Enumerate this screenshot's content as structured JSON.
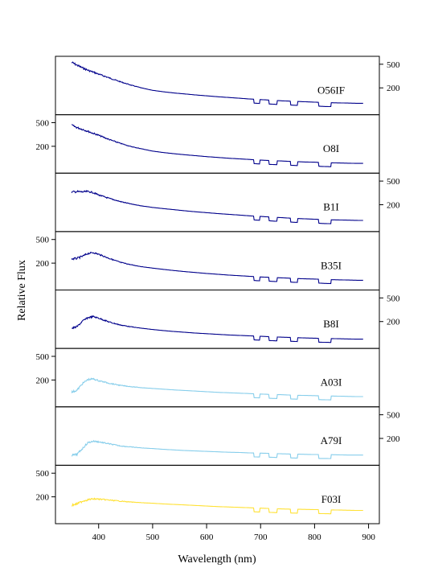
{
  "chart_data": {
    "type": "line",
    "xlabel": "Wavelength (nm)",
    "ylabel": "Relative Flux",
    "xlim": [
      320,
      920
    ],
    "x_ticks": [
      400,
      500,
      600,
      700,
      800,
      900
    ],
    "y_scale": "log",
    "y_ticks": [
      200,
      500
    ],
    "ylim": [
      80,
      600
    ],
    "grid": false,
    "series": [
      {
        "name": "O56IF",
        "color": "#00008b",
        "y_axis_side": "right",
        "x": [
          350,
          360,
          370,
          380,
          390,
          400,
          420,
          440,
          460,
          480,
          500,
          520,
          540,
          560,
          580,
          600,
          620,
          640,
          660,
          680,
          700,
          720,
          740,
          760,
          780,
          800,
          820,
          840,
          860,
          880,
          890
        ],
        "values": [
          560,
          500,
          450,
          410,
          380,
          350,
          300,
          258,
          225,
          200,
          182,
          172,
          164,
          158,
          152,
          147,
          142,
          138,
          134,
          130,
          127,
          124,
          121,
          119,
          117,
          115,
          113,
          112,
          111,
          110,
          110
        ]
      },
      {
        "name": "O8I",
        "color": "#00008b",
        "y_axis_side": "left",
        "x": [
          350,
          360,
          370,
          380,
          390,
          400,
          420,
          440,
          460,
          480,
          500,
          520,
          540,
          560,
          580,
          600,
          620,
          640,
          660,
          680,
          700,
          720,
          740,
          760,
          780,
          800,
          820,
          840,
          860,
          880,
          890
        ],
        "values": [
          470,
          430,
          400,
          370,
          340,
          315,
          265,
          228,
          200,
          182,
          166,
          157,
          150,
          144,
          139,
          134,
          130,
          126,
          123,
          120,
          117,
          115,
          113,
          111,
          109,
          108,
          106,
          105,
          104,
          103,
          103
        ]
      },
      {
        "name": "B1I",
        "color": "#00008b",
        "y_axis_side": "right",
        "x": [
          350,
          360,
          370,
          380,
          390,
          400,
          420,
          440,
          460,
          480,
          500,
          520,
          540,
          560,
          580,
          600,
          620,
          640,
          660,
          680,
          700,
          720,
          740,
          760,
          780,
          800,
          820,
          840,
          860,
          880,
          890
        ],
        "values": [
          340,
          345,
          340,
          345,
          330,
          300,
          260,
          230,
          208,
          192,
          180,
          172,
          165,
          158,
          152,
          147,
          142,
          138,
          134,
          130,
          127,
          124,
          121,
          118,
          116,
          114,
          112,
          111,
          110,
          109,
          109
        ]
      },
      {
        "name": "B35I",
        "color": "#00008b",
        "y_axis_side": "left",
        "x": [
          350,
          360,
          370,
          380,
          390,
          400,
          420,
          440,
          460,
          480,
          500,
          520,
          540,
          560,
          580,
          600,
          620,
          640,
          660,
          680,
          700,
          720,
          740,
          760,
          780,
          800,
          820,
          840,
          860,
          880,
          890
        ],
        "values": [
          245,
          250,
          270,
          300,
          310,
          290,
          245,
          210,
          190,
          175,
          165,
          157,
          150,
          144,
          139,
          134,
          130,
          126,
          123,
          120,
          117,
          115,
          113,
          111,
          109,
          108,
          106,
          105,
          104,
          103,
          103
        ]
      },
      {
        "name": "B8I",
        "color": "#00008b",
        "y_axis_side": "right",
        "x": [
          350,
          360,
          370,
          380,
          390,
          400,
          420,
          440,
          460,
          480,
          500,
          520,
          540,
          560,
          580,
          600,
          620,
          640,
          660,
          680,
          700,
          720,
          740,
          760,
          780,
          800,
          820,
          840,
          860,
          880,
          890
        ],
        "values": [
          160,
          170,
          210,
          240,
          250,
          235,
          200,
          178,
          165,
          155,
          147,
          141,
          136,
          132,
          128,
          125,
          122,
          119,
          117,
          115,
          113,
          111,
          109,
          108,
          106,
          105,
          104,
          103,
          102,
          101,
          101
        ]
      },
      {
        "name": "A03I",
        "color": "#87ceeb",
        "y_axis_side": "left",
        "x": [
          350,
          360,
          370,
          380,
          390,
          400,
          420,
          440,
          460,
          480,
          500,
          520,
          540,
          560,
          580,
          600,
          620,
          640,
          660,
          680,
          700,
          720,
          740,
          760,
          780,
          800,
          820,
          840,
          860,
          880,
          890
        ],
        "values": [
          130,
          140,
          180,
          210,
          215,
          200,
          180,
          165,
          156,
          149,
          144,
          140,
          136,
          133,
          130,
          127,
          124,
          122,
          120,
          118,
          116,
          114,
          113,
          111,
          110,
          109,
          108,
          107,
          106,
          105,
          105
        ]
      },
      {
        "name": "A79I",
        "color": "#87ceeb",
        "y_axis_side": "right",
        "x": [
          350,
          360,
          370,
          380,
          390,
          400,
          420,
          440,
          460,
          480,
          500,
          520,
          540,
          560,
          580,
          600,
          620,
          640,
          660,
          680,
          700,
          720,
          740,
          760,
          780,
          800,
          820,
          840,
          860,
          880,
          890
        ],
        "values": [
          108,
          112,
          140,
          175,
          185,
          180,
          165,
          152,
          145,
          139,
          135,
          131,
          128,
          125,
          123,
          121,
          119,
          117,
          116,
          114,
          113,
          112,
          110,
          109,
          108,
          107,
          107,
          106,
          105,
          105,
          105
        ]
      },
      {
        "name": "F03I",
        "color": "#ffe135",
        "y_axis_side": "left",
        "x": [
          350,
          360,
          370,
          380,
          390,
          400,
          420,
          440,
          460,
          480,
          500,
          520,
          540,
          560,
          580,
          600,
          620,
          640,
          660,
          680,
          700,
          720,
          740,
          760,
          780,
          800,
          820,
          840,
          860,
          880,
          890
        ],
        "values": [
          150,
          158,
          175,
          185,
          190,
          188,
          180,
          172,
          165,
          160,
          156,
          152,
          149,
          146,
          143,
          140,
          137,
          135,
          133,
          131,
          129,
          127,
          125,
          124,
          123,
          122,
          121,
          120,
          119,
          118,
          118
        ]
      }
    ]
  }
}
